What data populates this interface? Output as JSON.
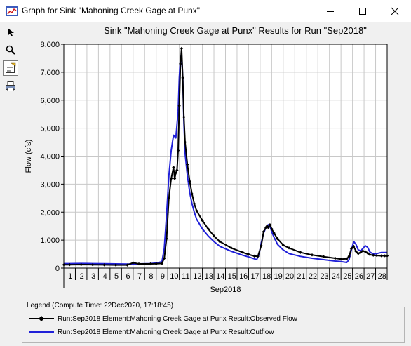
{
  "window": {
    "title": "Graph for Sink \"Mahoning Creek Gage at Punx\"",
    "icons": [
      "app-graph-icon",
      "minimize-icon",
      "maximize-icon",
      "close-icon"
    ]
  },
  "toolbar": {
    "tools": [
      {
        "name": "select-pointer-icon",
        "selected": false
      },
      {
        "name": "zoom-magnifier-icon",
        "selected": false
      },
      {
        "name": "edit-properties-icon",
        "selected": true
      },
      {
        "name": "print-icon",
        "selected": false
      }
    ]
  },
  "legend": {
    "title": "Legend (Compute Time: 22Dec2020, 17:18:45)",
    "items": [
      {
        "label": "Run:Sep2018 Element:Mahoning Creek Gage at Punx Result:Observed Flow",
        "color": "#000000",
        "marker": "diamond"
      },
      {
        "label": "Run:Sep2018 Element:Mahoning Creek Gage at Punx Result:Outflow",
        "color": "#2020d8",
        "marker": "none"
      }
    ]
  },
  "chart_data": {
    "type": "line",
    "title": "Sink \"Mahoning Creek Gage at Punx\" Results for Run \"Sep2018\"",
    "xlabel": "Sep2018",
    "ylabel": "Flow (cfs)",
    "ylim": [
      0,
      8000
    ],
    "xlim": [
      0.5,
      28.5
    ],
    "grid": true,
    "x_ticks": [
      "1",
      "2",
      "3",
      "4",
      "5",
      "6",
      "7",
      "8",
      "9",
      "10",
      "11",
      "12",
      "13",
      "14",
      "15",
      "16",
      "17",
      "18",
      "19",
      "20",
      "21",
      "22",
      "23",
      "24",
      "25",
      "26",
      "27",
      "28"
    ],
    "y_ticks": [
      "0",
      "1,000",
      "2,000",
      "3,000",
      "4,000",
      "5,000",
      "6,000",
      "7,000",
      "8,000"
    ],
    "series": [
      {
        "name": "Run:Sep2018 Element:Mahoning Creek Gage at Punx Result:Observed Flow",
        "color": "#000000",
        "marker": "diamond",
        "x": [
          0.5,
          1,
          2,
          3,
          4,
          5,
          6,
          6.5,
          7,
          8,
          8.5,
          9,
          9.2,
          9.4,
          9.6,
          9.8,
          10,
          10.1,
          10.2,
          10.3,
          10.4,
          10.5,
          10.6,
          10.7,
          10.8,
          10.9,
          11,
          11.2,
          11.4,
          11.6,
          11.8,
          12,
          12.5,
          13,
          13.5,
          14,
          15,
          16,
          16.5,
          17,
          17.3,
          17.6,
          17.8,
          18,
          18.1,
          18.2,
          18.35,
          18.5,
          18.7,
          19,
          19.5,
          20,
          21,
          22,
          23,
          24,
          24.5,
          25,
          25.2,
          25.4,
          25.6,
          25.8,
          26,
          26.2,
          26.4,
          26.6,
          26.8,
          27,
          27.3,
          27.6,
          28,
          28.3,
          28.5
        ],
        "y": [
          120,
          120,
          125,
          120,
          115,
          110,
          110,
          190,
          150,
          150,
          155,
          165,
          350,
          1050,
          2500,
          3200,
          3600,
          3200,
          3400,
          3500,
          4200,
          5800,
          7300,
          7850,
          6800,
          5400,
          4500,
          3700,
          3100,
          2650,
          2300,
          2050,
          1700,
          1400,
          1150,
          950,
          720,
          560,
          490,
          430,
          420,
          800,
          1300,
          1450,
          1500,
          1450,
          1550,
          1400,
          1250,
          1050,
          820,
          720,
          560,
          470,
          410,
          350,
          320,
          330,
          420,
          700,
          780,
          600,
          520,
          560,
          610,
          590,
          540,
          480,
          460,
          450,
          440,
          440,
          440
        ]
      },
      {
        "name": "Run:Sep2018 Element:Mahoning Creek Gage at Punx Result:Outflow",
        "color": "#2020d8",
        "marker": "none",
        "x": [
          0.5,
          1,
          2,
          3,
          4,
          5,
          6,
          7,
          8,
          8.5,
          9,
          9.2,
          9.4,
          9.6,
          9.8,
          10,
          10.2,
          10.4,
          10.5,
          10.6,
          10.7,
          10.8,
          10.9,
          11,
          11.2,
          11.4,
          11.6,
          11.8,
          12,
          12.5,
          13,
          13.5,
          14,
          15,
          16,
          16.5,
          17,
          17.2,
          17.4,
          17.6,
          17.8,
          18,
          18.2,
          18.35,
          18.5,
          18.7,
          19,
          19.5,
          20,
          21,
          22,
          23,
          24,
          24.5,
          25,
          25.2,
          25.4,
          25.6,
          25.8,
          26,
          26.2,
          26.4,
          26.6,
          26.8,
          27,
          27.3,
          27.6,
          28,
          28.3,
          28.5
        ],
        "y": [
          160,
          160,
          165,
          160,
          155,
          150,
          145,
          150,
          160,
          180,
          230,
          700,
          1900,
          3300,
          4200,
          4750,
          4650,
          5600,
          6800,
          7500,
          7650,
          6800,
          5200,
          4100,
          3300,
          2700,
          2300,
          2000,
          1750,
          1400,
          1150,
          950,
          780,
          600,
          460,
          400,
          330,
          300,
          470,
          900,
          1250,
          1450,
          1550,
          1500,
          1300,
          1100,
          850,
          650,
          520,
          420,
          350,
          300,
          250,
          230,
          200,
          300,
          650,
          950,
          850,
          650,
          620,
          700,
          800,
          750,
          580,
          500,
          520,
          560,
          560,
          560
        ]
      }
    ]
  }
}
